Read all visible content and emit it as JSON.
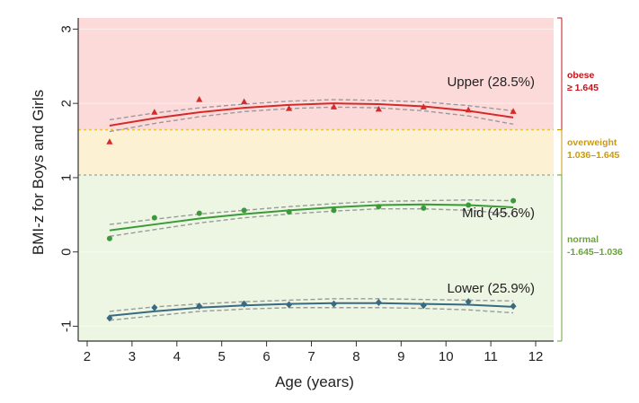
{
  "chart_data": {
    "type": "line",
    "xlabel": "Age (years)",
    "ylabel": "BMI-z for Boys and Girls",
    "xlim": [
      1.8,
      12.4
    ],
    "ylim": [
      -1.2,
      3.15
    ],
    "x_ticks": [
      2,
      3,
      4,
      5,
      6,
      7,
      8,
      9,
      10,
      11,
      12
    ],
    "y_ticks": [
      -1,
      0,
      1,
      2,
      3
    ],
    "grid": false,
    "bands": [
      {
        "key": "obese",
        "label": "obese",
        "range_label": "≥ 1.645",
        "from": 1.645,
        "to": 3.15,
        "color": "#fddada",
        "text_color": "#c0141b"
      },
      {
        "key": "overweight",
        "label": "overweight",
        "range_label": "1.036–1.645",
        "from": 1.036,
        "to": 1.645,
        "color": "#fdf1d3",
        "text_color": "#c99a10"
      },
      {
        "key": "normal",
        "label": "normal",
        "range_label": "-1.645–1.036",
        "from": -1.2,
        "to": 1.036,
        "color": "#edf5e3",
        "text_color": "#6aa33a"
      }
    ],
    "series": [
      {
        "key": "upper",
        "label": "Upper (28.5%)",
        "color": "#d42a2a",
        "marker": "triangle",
        "x": [
          2.5,
          3.5,
          4.5,
          5.5,
          6.5,
          7.5,
          8.5,
          9.5,
          10.5,
          11.5
        ],
        "points": [
          1.48,
          1.88,
          2.05,
          2.02,
          1.93,
          1.95,
          1.92,
          1.95,
          1.91,
          1.89
        ],
        "fit": [
          1.7,
          1.8,
          1.88,
          1.94,
          1.98,
          2.0,
          1.99,
          1.96,
          1.9,
          1.81
        ],
        "ci_upper": [
          1.78,
          1.87,
          1.94,
          1.99,
          2.03,
          2.05,
          2.04,
          2.02,
          1.97,
          1.9
        ],
        "ci_lower": [
          1.62,
          1.73,
          1.82,
          1.89,
          1.93,
          1.95,
          1.94,
          1.9,
          1.83,
          1.72
        ]
      },
      {
        "key": "mid",
        "label": "Mid (45.6%)",
        "color": "#3a9a3a",
        "marker": "circle",
        "x": [
          2.5,
          3.5,
          4.5,
          5.5,
          6.5,
          7.5,
          8.5,
          9.5,
          10.5,
          11.5
        ],
        "points": [
          0.18,
          0.46,
          0.52,
          0.56,
          0.54,
          0.56,
          0.61,
          0.59,
          0.63,
          0.69
        ],
        "fit": [
          0.29,
          0.37,
          0.45,
          0.51,
          0.56,
          0.6,
          0.63,
          0.64,
          0.63,
          0.6
        ],
        "ci_upper": [
          0.37,
          0.44,
          0.51,
          0.56,
          0.61,
          0.65,
          0.68,
          0.69,
          0.7,
          0.69
        ],
        "ci_lower": [
          0.21,
          0.3,
          0.39,
          0.46,
          0.51,
          0.55,
          0.58,
          0.58,
          0.56,
          0.51
        ]
      },
      {
        "key": "lower",
        "label": "Lower (25.9%)",
        "color": "#3a6a82",
        "marker": "diamond",
        "x": [
          2.5,
          3.5,
          4.5,
          5.5,
          6.5,
          7.5,
          8.5,
          9.5,
          10.5,
          11.5
        ],
        "points": [
          -0.89,
          -0.75,
          -0.73,
          -0.7,
          -0.71,
          -0.7,
          -0.68,
          -0.72,
          -0.67,
          -0.73
        ],
        "fit": [
          -0.86,
          -0.8,
          -0.75,
          -0.72,
          -0.7,
          -0.69,
          -0.69,
          -0.7,
          -0.71,
          -0.74
        ],
        "ci_upper": [
          -0.8,
          -0.74,
          -0.7,
          -0.67,
          -0.65,
          -0.63,
          -0.63,
          -0.64,
          -0.65,
          -0.66
        ],
        "ci_lower": [
          -0.92,
          -0.86,
          -0.8,
          -0.77,
          -0.75,
          -0.75,
          -0.75,
          -0.76,
          -0.78,
          -0.82
        ]
      }
    ]
  }
}
